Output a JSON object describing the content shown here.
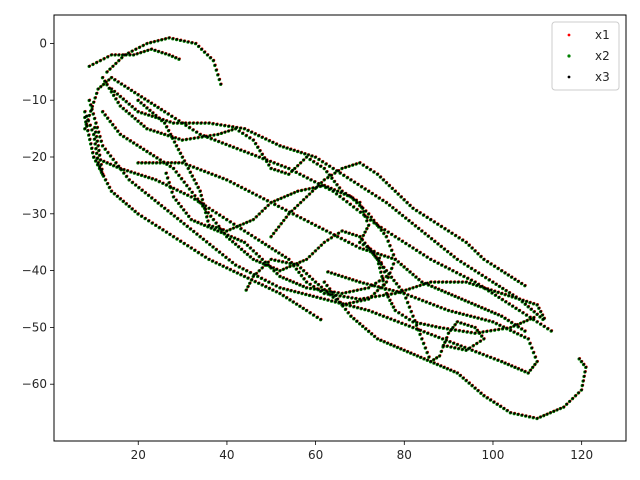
{
  "chart_data": {
    "type": "scatter",
    "title": "",
    "xlabel": "",
    "ylabel": "",
    "xlim": [
      1,
      130
    ],
    "ylim": [
      -70,
      5
    ],
    "xticks": [
      20,
      40,
      60,
      80,
      100,
      120
    ],
    "yticks": [
      0,
      -10,
      -20,
      -30,
      -40,
      -50,
      -60
    ],
    "xtick_labels": [
      "20",
      "40",
      "60",
      "80",
      "100",
      "120"
    ],
    "ytick_labels": [
      "0",
      "−10",
      "−20",
      "−30",
      "−40",
      "−50",
      "−60"
    ],
    "grid": false,
    "legend": {
      "position": "top-right",
      "entries": [
        "x1",
        "x2",
        "x3"
      ]
    },
    "series": [
      {
        "name": "x1",
        "color": "#ff0000",
        "marker_size": 1.3,
        "offset": [
          0.35,
          -0.35
        ]
      },
      {
        "name": "x2",
        "color": "#008000",
        "marker_size": 1.6,
        "offset": [
          -0.35,
          0.3
        ]
      },
      {
        "name": "x3",
        "color": "#000000",
        "marker_size": 1.2,
        "offset": [
          0,
          0
        ]
      }
    ],
    "trajectories": [
      {
        "points": [
          [
            13,
            -5
          ],
          [
            17,
            -2
          ],
          [
            22,
            0
          ],
          [
            27,
            1
          ],
          [
            33,
            0
          ],
          [
            37,
            -3
          ],
          [
            39,
            -8
          ]
        ]
      },
      {
        "points": [
          [
            9,
            -4
          ],
          [
            14,
            -2
          ],
          [
            19,
            -2
          ],
          [
            23,
            -1
          ],
          [
            27,
            -2
          ],
          [
            30,
            -3
          ]
        ]
      },
      {
        "points": [
          [
            8,
            -15
          ],
          [
            11,
            -8
          ],
          [
            14,
            -6
          ],
          [
            20,
            -9
          ],
          [
            26,
            -12
          ],
          [
            34,
            -16
          ],
          [
            44,
            -19
          ],
          [
            54,
            -22
          ],
          [
            64,
            -26
          ],
          [
            74,
            -32
          ],
          [
            86,
            -38
          ],
          [
            96,
            -42
          ],
          [
            106,
            -47
          ],
          [
            114,
            -51
          ]
        ]
      },
      {
        "points": [
          [
            8,
            -13
          ],
          [
            10,
            -20
          ],
          [
            14,
            -26
          ],
          [
            20,
            -30
          ],
          [
            28,
            -34
          ],
          [
            36,
            -38
          ],
          [
            44,
            -41
          ],
          [
            52,
            -44
          ],
          [
            58,
            -47
          ],
          [
            62,
            -49
          ]
        ]
      },
      {
        "points": [
          [
            9,
            -10
          ],
          [
            12,
            -18
          ],
          [
            18,
            -24
          ],
          [
            26,
            -29
          ],
          [
            34,
            -34
          ],
          [
            42,
            -39
          ],
          [
            52,
            -43
          ],
          [
            62,
            -45
          ],
          [
            72,
            -47
          ],
          [
            82,
            -50
          ],
          [
            92,
            -53
          ],
          [
            102,
            -56
          ],
          [
            108,
            -58
          ],
          [
            110,
            -56
          ],
          [
            108,
            -52
          ],
          [
            100,
            -49
          ],
          [
            90,
            -47
          ],
          [
            80,
            -44
          ],
          [
            70,
            -42
          ],
          [
            62,
            -40
          ]
        ]
      },
      {
        "points": [
          [
            12,
            -6
          ],
          [
            16,
            -11
          ],
          [
            22,
            -15
          ],
          [
            30,
            -17
          ],
          [
            38,
            -16
          ],
          [
            42,
            -15
          ],
          [
            46,
            -17
          ],
          [
            50,
            -22
          ],
          [
            54,
            -23
          ],
          [
            58,
            -20
          ],
          [
            62,
            -22
          ],
          [
            66,
            -26
          ],
          [
            70,
            -28
          ],
          [
            72,
            -32
          ],
          [
            70,
            -35
          ],
          [
            74,
            -37
          ],
          [
            76,
            -41
          ],
          [
            72,
            -43
          ],
          [
            66,
            -44
          ],
          [
            58,
            -43
          ],
          [
            52,
            -41
          ],
          [
            48,
            -38
          ],
          [
            44,
            -35
          ],
          [
            38,
            -33
          ],
          [
            32,
            -31
          ],
          [
            28,
            -27
          ],
          [
            26,
            -22
          ]
        ]
      },
      {
        "points": [
          [
            20,
            -10
          ],
          [
            26,
            -14
          ],
          [
            30,
            -20
          ],
          [
            34,
            -26
          ],
          [
            36,
            -32
          ],
          [
            40,
            -33
          ],
          [
            46,
            -31
          ],
          [
            50,
            -28
          ],
          [
            56,
            -26
          ],
          [
            62,
            -25
          ],
          [
            68,
            -27
          ],
          [
            72,
            -30
          ],
          [
            76,
            -34
          ],
          [
            78,
            -38
          ],
          [
            76,
            -42
          ],
          [
            72,
            -45
          ],
          [
            66,
            -46
          ],
          [
            60,
            -42
          ],
          [
            56,
            -39
          ],
          [
            50,
            -38
          ],
          [
            46,
            -41
          ],
          [
            44,
            -44
          ]
        ]
      },
      {
        "points": [
          [
            14,
            -8
          ],
          [
            20,
            -12
          ],
          [
            28,
            -14
          ],
          [
            36,
            -14
          ],
          [
            44,
            -15
          ],
          [
            52,
            -18
          ],
          [
            60,
            -20
          ],
          [
            68,
            -24
          ],
          [
            76,
            -28
          ],
          [
            84,
            -33
          ],
          [
            92,
            -38
          ],
          [
            100,
            -42
          ],
          [
            106,
            -45
          ],
          [
            112,
            -49
          ]
        ]
      },
      {
        "points": [
          [
            10,
            -20
          ],
          [
            16,
            -22
          ],
          [
            24,
            -24
          ],
          [
            32,
            -27
          ],
          [
            40,
            -31
          ],
          [
            48,
            -35
          ],
          [
            54,
            -38
          ],
          [
            58,
            -42
          ],
          [
            62,
            -44
          ],
          [
            70,
            -45
          ],
          [
            78,
            -44
          ],
          [
            86,
            -42
          ],
          [
            94,
            -42
          ],
          [
            102,
            -44
          ],
          [
            110,
            -46
          ],
          [
            112,
            -49
          ]
        ]
      },
      {
        "points": [
          [
            20,
            -21
          ],
          [
            30,
            -21
          ],
          [
            40,
            -24
          ],
          [
            50,
            -28
          ],
          [
            60,
            -32
          ],
          [
            70,
            -36
          ],
          [
            78,
            -38
          ],
          [
            84,
            -42
          ],
          [
            90,
            -44
          ],
          [
            96,
            -46
          ],
          [
            102,
            -48
          ],
          [
            108,
            -51
          ]
        ]
      },
      {
        "points": [
          [
            62,
            -42
          ],
          [
            68,
            -48
          ],
          [
            74,
            -52
          ],
          [
            80,
            -54
          ],
          [
            86,
            -56
          ],
          [
            92,
            -58
          ],
          [
            98,
            -62
          ],
          [
            104,
            -65
          ],
          [
            110,
            -66
          ],
          [
            116,
            -64
          ],
          [
            120,
            -61
          ],
          [
            121,
            -57
          ],
          [
            119,
            -55
          ]
        ]
      },
      {
        "points": [
          [
            12,
            -12
          ],
          [
            16,
            -16
          ],
          [
            22,
            -19
          ],
          [
            28,
            -22
          ],
          [
            34,
            -28
          ],
          [
            40,
            -34
          ],
          [
            46,
            -38
          ],
          [
            52,
            -40
          ],
          [
            58,
            -38
          ],
          [
            62,
            -35
          ],
          [
            66,
            -33
          ],
          [
            70,
            -34
          ],
          [
            74,
            -38
          ],
          [
            76,
            -44
          ],
          [
            78,
            -47
          ],
          [
            82,
            -49
          ],
          [
            88,
            -50
          ],
          [
            96,
            -51
          ],
          [
            104,
            -50
          ],
          [
            110,
            -48
          ]
        ]
      },
      {
        "points": [
          [
            72,
            -36
          ],
          [
            76,
            -40
          ],
          [
            80,
            -44
          ],
          [
            82,
            -48
          ],
          [
            84,
            -52
          ],
          [
            86,
            -56
          ],
          [
            88,
            -55
          ],
          [
            90,
            -51
          ],
          [
            92,
            -49
          ],
          [
            96,
            -50
          ],
          [
            98,
            -52
          ],
          [
            94,
            -54
          ],
          [
            88,
            -53
          ]
        ]
      },
      {
        "points": [
          [
            50,
            -34
          ],
          [
            54,
            -30
          ],
          [
            58,
            -27
          ],
          [
            62,
            -24
          ],
          [
            66,
            -22
          ],
          [
            70,
            -21
          ],
          [
            74,
            -23
          ],
          [
            78,
            -26
          ],
          [
            82,
            -29
          ],
          [
            86,
            -31
          ],
          [
            90,
            -33
          ],
          [
            94,
            -35
          ],
          [
            98,
            -38
          ],
          [
            102,
            -40
          ],
          [
            108,
            -43
          ]
        ]
      },
      {
        "points": [
          [
            8,
            -12
          ],
          [
            10,
            -16
          ],
          [
            11,
            -21
          ],
          [
            12,
            -23
          ],
          [
            11,
            -18
          ],
          [
            10,
            -14
          ]
        ]
      }
    ]
  }
}
